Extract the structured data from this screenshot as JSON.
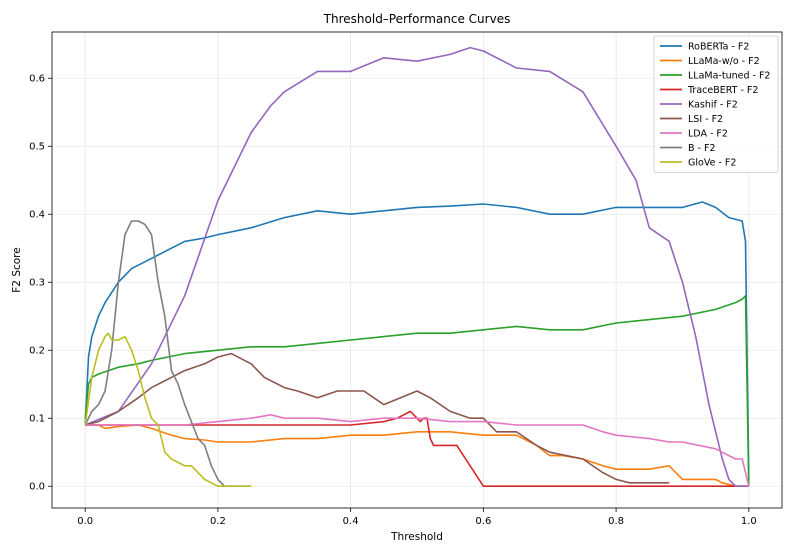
{
  "chart_data": {
    "type": "line",
    "title": "Threshold–Performance Curves",
    "xlabel": "Threshold",
    "ylabel": "F2 Score",
    "xlim": [
      -0.05,
      1.05
    ],
    "ylim": [
      -0.032,
      0.668
    ],
    "xticks": [
      0.0,
      0.2,
      0.4,
      0.6,
      0.8,
      1.0
    ],
    "xtick_labels": [
      "0.0",
      "0.2",
      "0.4",
      "0.6",
      "0.8",
      "1.0"
    ],
    "yticks": [
      0.0,
      0.1,
      0.2,
      0.3,
      0.4,
      0.5,
      0.6
    ],
    "ytick_labels": [
      "0.0",
      "0.1",
      "0.2",
      "0.3",
      "0.4",
      "0.5",
      "0.6"
    ],
    "grid": true,
    "legend_position": "top-right",
    "series": [
      {
        "name": "RoBERTa - F2",
        "color": "#1f77b4",
        "x": [
          0.0,
          0.005,
          0.01,
          0.02,
          0.03,
          0.05,
          0.07,
          0.09,
          0.1,
          0.12,
          0.15,
          0.18,
          0.2,
          0.25,
          0.3,
          0.35,
          0.4,
          0.45,
          0.5,
          0.55,
          0.6,
          0.65,
          0.7,
          0.75,
          0.8,
          0.85,
          0.9,
          0.93,
          0.95,
          0.97,
          0.99,
          0.995,
          1.0
        ],
        "y": [
          0.09,
          0.19,
          0.22,
          0.25,
          0.27,
          0.3,
          0.32,
          0.33,
          0.335,
          0.345,
          0.36,
          0.365,
          0.37,
          0.38,
          0.395,
          0.405,
          0.4,
          0.405,
          0.41,
          0.412,
          0.415,
          0.41,
          0.4,
          0.4,
          0.41,
          0.41,
          0.41,
          0.418,
          0.41,
          0.395,
          0.39,
          0.36,
          0.01
        ]
      },
      {
        "name": "LLaMa-w/o - F2",
        "color": "#ff7f0e",
        "x": [
          0.0,
          0.02,
          0.03,
          0.05,
          0.08,
          0.1,
          0.13,
          0.15,
          0.18,
          0.2,
          0.25,
          0.3,
          0.35,
          0.4,
          0.45,
          0.5,
          0.55,
          0.6,
          0.65,
          0.68,
          0.7,
          0.72,
          0.75,
          0.78,
          0.8,
          0.85,
          0.88,
          0.9,
          0.95,
          0.96,
          0.98,
          1.0
        ],
        "y": [
          0.09,
          0.09,
          0.085,
          0.088,
          0.09,
          0.085,
          0.075,
          0.07,
          0.068,
          0.065,
          0.065,
          0.07,
          0.07,
          0.075,
          0.075,
          0.08,
          0.08,
          0.075,
          0.075,
          0.06,
          0.045,
          0.045,
          0.04,
          0.03,
          0.025,
          0.025,
          0.03,
          0.01,
          0.01,
          0.005,
          0.0,
          0.0
        ]
      },
      {
        "name": "LLaMa-tuned - F2",
        "color": "#2ca02c",
        "x": [
          0.0,
          0.005,
          0.01,
          0.02,
          0.05,
          0.08,
          0.1,
          0.15,
          0.2,
          0.25,
          0.3,
          0.35,
          0.4,
          0.45,
          0.5,
          0.55,
          0.6,
          0.65,
          0.7,
          0.75,
          0.8,
          0.85,
          0.9,
          0.95,
          0.98,
          0.99,
          0.995,
          1.0
        ],
        "y": [
          0.1,
          0.15,
          0.16,
          0.165,
          0.175,
          0.18,
          0.185,
          0.195,
          0.2,
          0.205,
          0.205,
          0.21,
          0.215,
          0.22,
          0.225,
          0.225,
          0.23,
          0.235,
          0.23,
          0.23,
          0.24,
          0.245,
          0.25,
          0.26,
          0.27,
          0.275,
          0.28,
          0.0
        ]
      },
      {
        "name": "TraceBERT - F2",
        "color": "#d62728",
        "x": [
          0.0,
          0.1,
          0.2,
          0.3,
          0.4,
          0.45,
          0.47,
          0.48,
          0.49,
          0.5,
          0.505,
          0.51,
          0.515,
          0.52,
          0.525,
          0.53,
          0.55,
          0.56,
          0.6,
          0.61,
          1.0
        ],
        "y": [
          0.09,
          0.09,
          0.09,
          0.09,
          0.09,
          0.095,
          0.1,
          0.105,
          0.11,
          0.1,
          0.095,
          0.1,
          0.1,
          0.07,
          0.06,
          0.06,
          0.06,
          0.06,
          0.0,
          0.0,
          0.0
        ]
      },
      {
        "name": "Kashif - F2",
        "color": "#9467bd",
        "x": [
          0.0,
          0.05,
          0.1,
          0.15,
          0.2,
          0.25,
          0.28,
          0.3,
          0.35,
          0.4,
          0.45,
          0.5,
          0.55,
          0.58,
          0.6,
          0.65,
          0.7,
          0.75,
          0.8,
          0.83,
          0.85,
          0.88,
          0.9,
          0.92,
          0.94,
          0.96,
          0.97,
          0.98,
          0.99,
          1.0
        ],
        "y": [
          0.09,
          0.11,
          0.18,
          0.28,
          0.42,
          0.52,
          0.56,
          0.58,
          0.61,
          0.61,
          0.63,
          0.625,
          0.635,
          0.645,
          0.64,
          0.615,
          0.61,
          0.58,
          0.5,
          0.45,
          0.38,
          0.36,
          0.3,
          0.22,
          0.12,
          0.04,
          0.01,
          0.0,
          0.0,
          0.0
        ]
      },
      {
        "name": "LSI - F2",
        "color": "#8c564b",
        "x": [
          0.0,
          0.02,
          0.05,
          0.08,
          0.1,
          0.12,
          0.15,
          0.18,
          0.2,
          0.22,
          0.25,
          0.27,
          0.3,
          0.32,
          0.35,
          0.38,
          0.4,
          0.42,
          0.45,
          0.5,
          0.52,
          0.55,
          0.58,
          0.6,
          0.62,
          0.65,
          0.68,
          0.7,
          0.75,
          0.78,
          0.8,
          0.82,
          0.85,
          0.88
        ],
        "y": [
          0.09,
          0.095,
          0.11,
          0.13,
          0.145,
          0.155,
          0.17,
          0.18,
          0.19,
          0.195,
          0.18,
          0.16,
          0.145,
          0.14,
          0.13,
          0.14,
          0.14,
          0.14,
          0.12,
          0.14,
          0.13,
          0.11,
          0.1,
          0.1,
          0.08,
          0.08,
          0.06,
          0.05,
          0.04,
          0.02,
          0.01,
          0.005,
          0.005,
          0.005
        ]
      },
      {
        "name": "LDA - F2",
        "color": "#e377c2",
        "x": [
          0.0,
          0.05,
          0.1,
          0.15,
          0.2,
          0.25,
          0.28,
          0.3,
          0.35,
          0.4,
          0.45,
          0.5,
          0.55,
          0.6,
          0.65,
          0.7,
          0.75,
          0.78,
          0.8,
          0.85,
          0.88,
          0.9,
          0.95,
          0.98,
          0.99,
          1.0
        ],
        "y": [
          0.09,
          0.09,
          0.09,
          0.09,
          0.095,
          0.1,
          0.105,
          0.1,
          0.1,
          0.095,
          0.1,
          0.1,
          0.095,
          0.095,
          0.09,
          0.09,
          0.09,
          0.08,
          0.075,
          0.07,
          0.065,
          0.065,
          0.055,
          0.04,
          0.04,
          0.0
        ]
      },
      {
        "name": "B - F2",
        "color": "#7f7f7f",
        "x": [
          0.0,
          0.01,
          0.02,
          0.03,
          0.04,
          0.05,
          0.06,
          0.07,
          0.08,
          0.09,
          0.1,
          0.11,
          0.12,
          0.13,
          0.14,
          0.15,
          0.17,
          0.18,
          0.19,
          0.2,
          0.21,
          0.22,
          0.25
        ],
        "y": [
          0.09,
          0.11,
          0.12,
          0.14,
          0.2,
          0.3,
          0.37,
          0.39,
          0.39,
          0.385,
          0.37,
          0.3,
          0.25,
          0.17,
          0.15,
          0.12,
          0.07,
          0.06,
          0.03,
          0.01,
          0.0,
          0.0,
          0.0
        ]
      },
      {
        "name": "GloVe - F2",
        "color": "#bcbd22",
        "x": [
          0.0,
          0.01,
          0.02,
          0.03,
          0.035,
          0.04,
          0.05,
          0.06,
          0.07,
          0.08,
          0.09,
          0.1,
          0.11,
          0.12,
          0.13,
          0.15,
          0.16,
          0.17,
          0.18,
          0.19,
          0.2,
          0.25
        ],
        "y": [
          0.09,
          0.16,
          0.2,
          0.22,
          0.225,
          0.215,
          0.215,
          0.22,
          0.2,
          0.17,
          0.13,
          0.1,
          0.09,
          0.05,
          0.04,
          0.03,
          0.03,
          0.02,
          0.01,
          0.005,
          0.0,
          0.0
        ]
      }
    ]
  }
}
